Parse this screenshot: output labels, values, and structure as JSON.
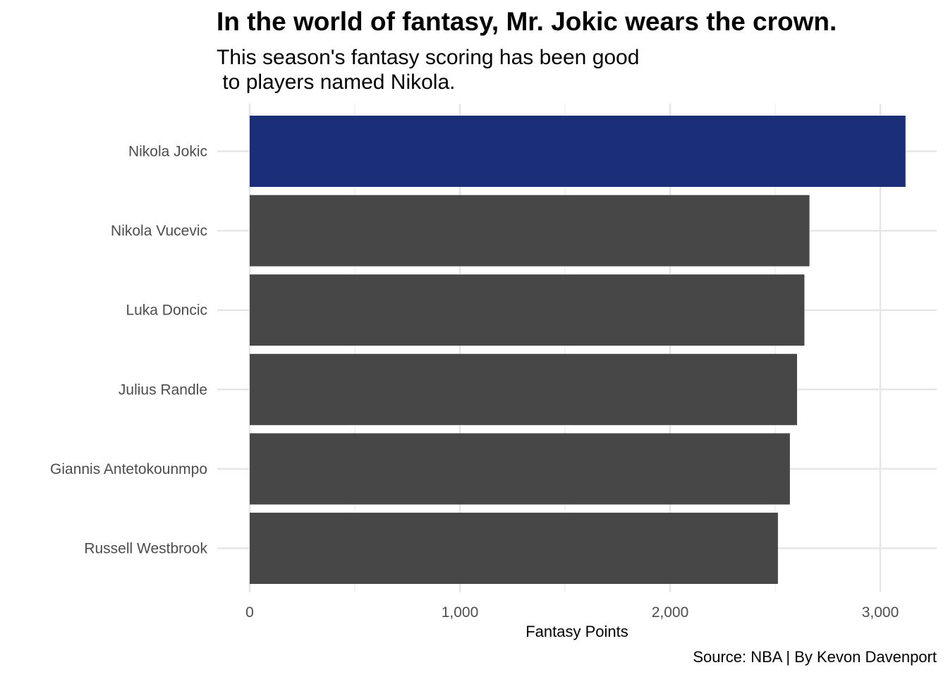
{
  "chart_data": {
    "type": "bar",
    "orientation": "horizontal",
    "title": "In the world of fantasy, Mr. Jokic wears the crown.",
    "subtitle": "This season's fantasy scoring has been good\n to players named Nikola.",
    "caption": "Source: NBA | By Kevon Davenport",
    "xlabel": "Fantasy Points",
    "ylabel": "",
    "categories": [
      "Nikola Jokic",
      "Nikola Vucevic",
      "Luka Doncic",
      "Julius Randle",
      "Giannis Antetokounmpo",
      "Russell Westbrook"
    ],
    "values": [
      3120,
      2663,
      2639,
      2604,
      2570,
      2513
    ],
    "highlight_index": 0,
    "xlim": [
      0,
      3270
    ],
    "xticks": [
      0,
      1000,
      2000,
      3000
    ],
    "xtick_labels": [
      "0",
      "1,000",
      "2,000",
      "3,000"
    ],
    "grid": true,
    "colors": {
      "highlight": "#1a2f78",
      "default": "#474747",
      "grid": "#e6e6e6"
    }
  }
}
